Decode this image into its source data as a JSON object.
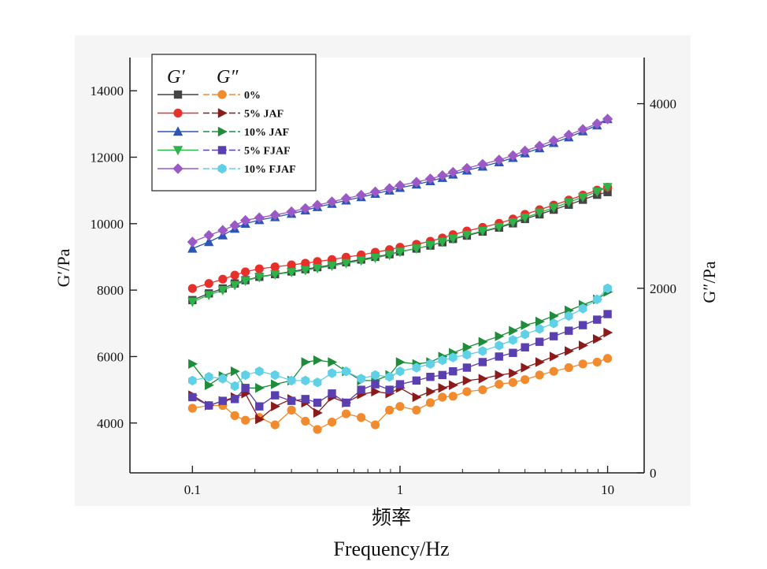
{
  "chart_data": {
    "type": "line",
    "xscale": "log",
    "xlim": [
      0.05,
      15
    ],
    "xticks": [
      0.1,
      1,
      10
    ],
    "xtick_labels": [
      "0.1",
      "1",
      "10"
    ],
    "xlabel_cn": "频率",
    "xlabel_en": "Frequency/Hz",
    "ylabel_left": "G′/Pa",
    "ylabel_right": "G″/Pa",
    "ylim_left": [
      2500,
      15000
    ],
    "yticks_left": [
      4000,
      6000,
      8000,
      10000,
      12000,
      14000
    ],
    "ylim_right": [
      0,
      4500
    ],
    "yticks_right": [
      0,
      2000,
      4000
    ],
    "legend": {
      "placement": "top-left",
      "header_g1": "G′",
      "header_g2": "G″",
      "labels": [
        "0%",
        "5% JAF",
        "10% JAF",
        "5% FJAF",
        "10% FJAF"
      ]
    },
    "x": [
      0.1,
      0.12,
      0.14,
      0.16,
      0.18,
      0.21,
      0.25,
      0.3,
      0.35,
      0.4,
      0.47,
      0.55,
      0.65,
      0.76,
      0.89,
      1.0,
      1.2,
      1.4,
      1.6,
      1.8,
      2.1,
      2.5,
      3.0,
      3.5,
      4.0,
      4.7,
      5.5,
      6.5,
      7.6,
      8.9,
      10.0
    ],
    "series": [
      {
        "name": "0%",
        "axis": "left",
        "modulus": "G′",
        "color": "#444444",
        "marker": "square",
        "values": [
          7700,
          7900,
          8050,
          8200,
          8300,
          8400,
          8480,
          8560,
          8630,
          8690,
          8760,
          8840,
          8920,
          9000,
          9080,
          9160,
          9250,
          9340,
          9440,
          9540,
          9640,
          9760,
          9880,
          10010,
          10140,
          10280,
          10420,
          10570,
          10720,
          10870,
          10950
        ]
      },
      {
        "name": "5% JAF",
        "axis": "left",
        "modulus": "G′",
        "color": "#e8302a",
        "marker": "circle",
        "values": [
          8050,
          8200,
          8330,
          8450,
          8550,
          8640,
          8700,
          8760,
          8810,
          8860,
          8920,
          8990,
          9060,
          9140,
          9220,
          9290,
          9380,
          9470,
          9570,
          9670,
          9780,
          9890,
          10010,
          10140,
          10280,
          10420,
          10560,
          10710,
          10860,
          11010,
          11100
        ]
      },
      {
        "name": "10% JAF",
        "axis": "left",
        "modulus": "G′",
        "color": "#2a55b5",
        "marker": "triangle-up",
        "values": [
          9250,
          9450,
          9650,
          9850,
          10000,
          10110,
          10200,
          10300,
          10400,
          10500,
          10600,
          10700,
          10800,
          10900,
          11000,
          11080,
          11180,
          11280,
          11380,
          11480,
          11600,
          11720,
          11850,
          11980,
          12120,
          12270,
          12430,
          12600,
          12780,
          12960,
          13150
        ]
      },
      {
        "name": "5% FJAF",
        "axis": "left",
        "modulus": "G′",
        "color": "#2db34a",
        "marker": "triangle-down",
        "values": [
          7650,
          7850,
          8000,
          8150,
          8280,
          8390,
          8470,
          8540,
          8600,
          8660,
          8730,
          8810,
          8890,
          8970,
          9060,
          9150,
          9250,
          9350,
          9450,
          9550,
          9660,
          9780,
          9900,
          10040,
          10180,
          10330,
          10480,
          10640,
          10800,
          10960,
          11100
        ]
      },
      {
        "name": "10% FJAF",
        "axis": "left",
        "modulus": "G′",
        "color": "#9b59c6",
        "marker": "diamond",
        "values": [
          9450,
          9650,
          9800,
          9950,
          10100,
          10180,
          10260,
          10360,
          10460,
          10560,
          10660,
          10760,
          10860,
          10960,
          11060,
          11150,
          11250,
          11350,
          11450,
          11550,
          11670,
          11790,
          11920,
          12050,
          12190,
          12340,
          12500,
          12670,
          12840,
          13010,
          13150
        ]
      },
      {
        "name": "0%",
        "axis": "right",
        "modulus": "G″",
        "color": "#f28a2e",
        "marker": "circle",
        "values": [
          700,
          730,
          730,
          620,
          570,
          600,
          520,
          680,
          560,
          470,
          550,
          640,
          600,
          520,
          680,
          720,
          680,
          760,
          820,
          830,
          880,
          900,
          960,
          980,
          1010,
          1060,
          1100,
          1140,
          1180,
          1200,
          1240
        ]
      },
      {
        "name": "5% JAF",
        "axis": "right",
        "modulus": "G″",
        "color": "#8b1a1a",
        "marker": "triangle-right",
        "values": [
          840,
          730,
          780,
          820,
          860,
          580,
          720,
          800,
          760,
          650,
          820,
          760,
          850,
          880,
          860,
          920,
          820,
          880,
          920,
          950,
          1000,
          1020,
          1060,
          1080,
          1140,
          1200,
          1260,
          1320,
          1380,
          1450,
          1520
        ]
      },
      {
        "name": "10% JAF",
        "axis": "right",
        "modulus": "G″",
        "color": "#1e8c3a",
        "marker": "triangle-right",
        "values": [
          1180,
          950,
          1050,
          1100,
          920,
          920,
          960,
          1000,
          1200,
          1220,
          1200,
          1100,
          1000,
          1000,
          1060,
          1200,
          1180,
          1200,
          1260,
          1300,
          1360,
          1420,
          1480,
          1540,
          1600,
          1640,
          1700,
          1760,
          1820,
          1880,
          1960
        ]
      },
      {
        "name": "5% FJAF",
        "axis": "right",
        "modulus": "G″",
        "color": "#5a3fb0",
        "marker": "square",
        "values": [
          820,
          730,
          780,
          800,
          920,
          720,
          840,
          780,
          800,
          760,
          860,
          760,
          900,
          960,
          900,
          960,
          1000,
          1040,
          1060,
          1100,
          1140,
          1200,
          1260,
          1300,
          1360,
          1420,
          1480,
          1540,
          1600,
          1660,
          1720
        ]
      },
      {
        "name": "10% FJAF",
        "axis": "right",
        "modulus": "G″",
        "color": "#5fd0e6",
        "marker": "hexagon",
        "values": [
          1000,
          1040,
          1020,
          940,
          1060,
          1100,
          1060,
          1000,
          1000,
          980,
          1080,
          1100,
          1020,
          1060,
          1040,
          1100,
          1140,
          1180,
          1220,
          1250,
          1280,
          1320,
          1380,
          1440,
          1500,
          1560,
          1620,
          1700,
          1780,
          1880,
          2000
        ]
      }
    ]
  }
}
